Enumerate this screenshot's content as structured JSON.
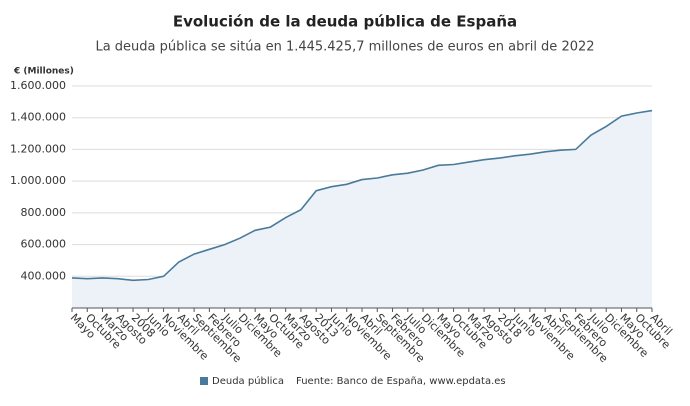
{
  "chart_data": {
    "type": "line",
    "title": "Evolución de la deuda pública de España",
    "subtitle": "La deuda pública se sitúa en 1.445.425,7 millones de euros en abril de 2022",
    "y_label": "€ (Millones)",
    "source": "Fuente: Banco de España, www.epdata.es",
    "categories": [
      "Mayo",
      "Octubre",
      "Marzo",
      "Agosto",
      "2008",
      "Junio",
      "Noviembre",
      "Abril",
      "Septiembre",
      "Febrero",
      "Julio",
      "Diciembre",
      "Mayo",
      "Octubre",
      "Marzo",
      "Agosto",
      "2013",
      "Junio",
      "Noviembre",
      "Abril",
      "Septiembre",
      "Febrero",
      "Julio",
      "Diciembre",
      "Mayo",
      "Octubre",
      "Marzo",
      "Agosto",
      "2018",
      "Junio",
      "Noviembre",
      "Abril",
      "Septiembre",
      "Febrero",
      "Julio",
      "Diciembre",
      "Mayo",
      "Octubre",
      "Abril"
    ],
    "series": [
      {
        "name": "Deuda pública",
        "color": "#4a7a9b",
        "fill": "#edf2f8",
        "values": [
          390000,
          385000,
          390000,
          385000,
          375000,
          380000,
          400000,
          490000,
          540000,
          570000,
          600000,
          640000,
          690000,
          710000,
          770000,
          820000,
          940000,
          965000,
          980000,
          1010000,
          1020000,
          1040000,
          1050000,
          1070000,
          1100000,
          1105000,
          1120000,
          1135000,
          1145000,
          1160000,
          1170000,
          1185000,
          1195000,
          1200000,
          1290000,
          1345000,
          1410000,
          1430000,
          1445000
        ]
      }
    ],
    "ylim": [
      200000,
      1600000
    ],
    "yticks": [
      {
        "value": 400000,
        "label": "400.000"
      },
      {
        "value": 600000,
        "label": "600.000"
      },
      {
        "value": 800000,
        "label": "800.000"
      },
      {
        "value": 1000000,
        "label": "1.000.000"
      },
      {
        "value": 1200000,
        "label": "1.200.000"
      },
      {
        "value": 1400000,
        "label": "1.400.000"
      },
      {
        "value": 1600000,
        "label": "1.600.000"
      }
    ],
    "grid": true
  }
}
